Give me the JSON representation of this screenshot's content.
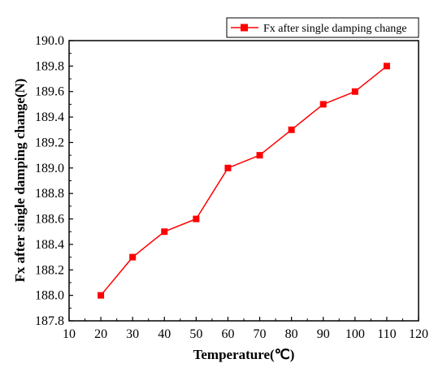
{
  "chart_data": {
    "type": "line",
    "xlabel": "Temperature(℃)",
    "ylabel": "Fx after single damping change(N)",
    "xlim": [
      10,
      120
    ],
    "ylim": [
      187.8,
      190.0
    ],
    "xticks": [
      "10",
      "20",
      "30",
      "40",
      "50",
      "60",
      "70",
      "80",
      "90",
      "100",
      "110",
      "120"
    ],
    "yticks": [
      "187.8",
      "188.0",
      "188.2",
      "188.4",
      "188.6",
      "188.8",
      "189.0",
      "189.2",
      "189.4",
      "189.6",
      "189.8",
      "190.0"
    ],
    "grid": false,
    "legend_position": "top-right",
    "series": [
      {
        "name": "Fx after single damping change",
        "color": "#ff0000",
        "marker": "square",
        "x": [
          20,
          30,
          40,
          50,
          60,
          70,
          80,
          90,
          100,
          110
        ],
        "y": [
          188.0,
          188.3,
          188.5,
          188.6,
          189.0,
          189.1,
          189.3,
          189.5,
          189.6,
          189.8
        ]
      }
    ]
  }
}
